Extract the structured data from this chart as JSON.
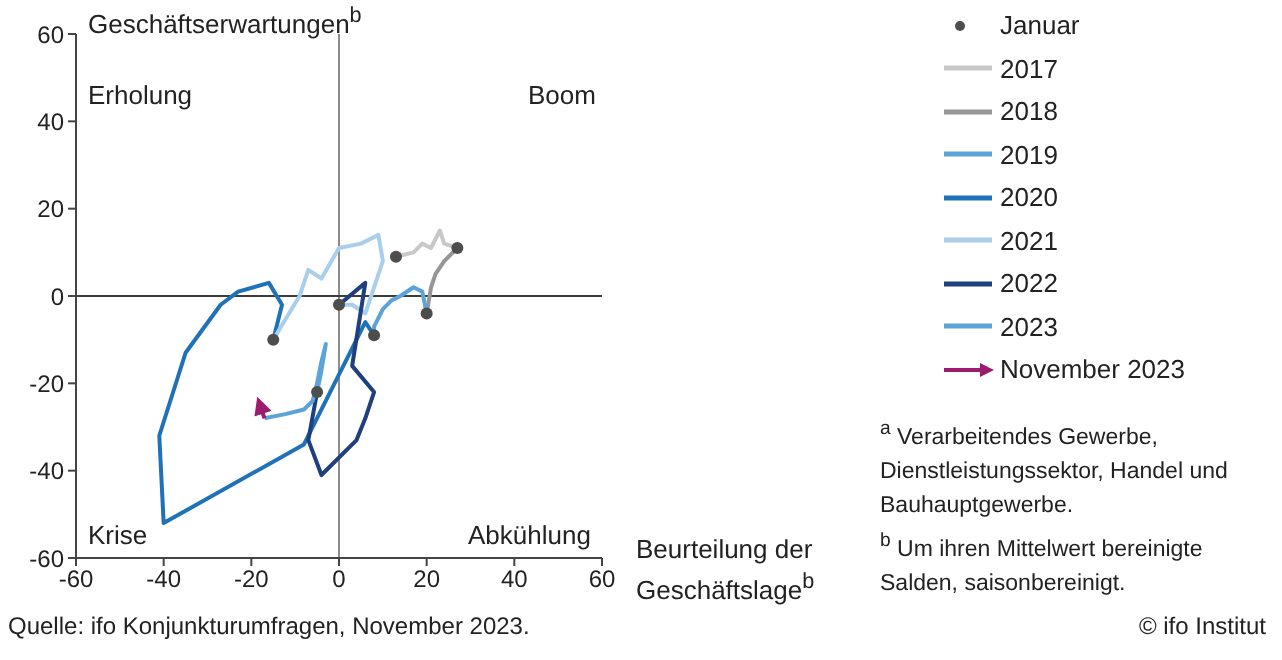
{
  "chart_data": {
    "type": "line",
    "xlabel": "Beurteilung der Geschäftslage$^{b}$",
    "ylabel": "Geschäftserwartungen$^{b}$",
    "xlim": [
      -60,
      60
    ],
    "xticks": [
      -60,
      -40,
      -20,
      0,
      20,
      40,
      60
    ],
    "ylim": [
      -60,
      60
    ],
    "yticks": [
      -60,
      -40,
      -20,
      0,
      20,
      40,
      60
    ],
    "grid": false,
    "legend": "right",
    "marker": "none",
    "ref_lines": [
      {
        "axis": "x",
        "value": 0,
        "color": "#8c8c8c"
      },
      {
        "axis": "y",
        "value": 0,
        "color": "#3c3c3c"
      }
    ],
    "series": [
      {
        "name": "Januar",
        "type": "scatter",
        "marker": "circle",
        "color": "#4d4d4d",
        "x": [
          13,
          27,
          20,
          8,
          -15,
          0,
          -5
        ],
        "values": [
          9,
          11,
          -4,
          -9,
          -10,
          -2,
          -22
        ]
      },
      {
        "name": "2017",
        "color": "#c8c8c8",
        "x": [
          13,
          17,
          19,
          21,
          23,
          24,
          27
        ],
        "values": [
          9,
          10,
          12,
          11,
          15,
          12,
          11
        ]
      },
      {
        "name": "2018",
        "color": "#969696",
        "x": [
          27,
          24,
          22,
          21,
          20
        ],
        "values": [
          11,
          8,
          5,
          2,
          -4
        ]
      },
      {
        "name": "2019",
        "color": "#5ba3d9",
        "x": [
          20,
          19,
          17,
          14,
          12,
          10,
          8,
          8
        ],
        "values": [
          -4,
          1,
          2,
          0,
          -1,
          -3,
          -7,
          -9
        ]
      },
      {
        "name": "2020",
        "color": "#1f72b8",
        "x": [
          8,
          6,
          -8,
          -40,
          -41,
          -35,
          -27,
          -23,
          -16,
          -13,
          -15
        ],
        "values": [
          -9,
          -6,
          -34,
          -52,
          -32,
          -13,
          -2,
          1,
          3,
          -2,
          -10
        ]
      },
      {
        "name": "2021",
        "color": "#a9cfec",
        "x": [
          -15,
          -12,
          -9,
          -7,
          -4,
          0,
          5,
          9,
          10,
          8,
          6,
          3,
          0
        ],
        "values": [
          -10,
          -5,
          0,
          6,
          4,
          11,
          12,
          14,
          8,
          2,
          -4,
          -2,
          -2
        ]
      },
      {
        "name": "2022",
        "color": "#1f3f7e",
        "x": [
          0,
          6,
          3,
          8,
          6,
          4,
          -4,
          -7,
          -5
        ],
        "values": [
          -2,
          3,
          -16,
          -22,
          -28,
          -33,
          -41,
          -33,
          -22
        ]
      },
      {
        "name": "2023",
        "color": "#5ba3d9",
        "x": [
          -5,
          -4,
          -3,
          -4,
          -5,
          -6,
          -8,
          -12,
          -17
        ],
        "values": [
          -22,
          -17,
          -11,
          -15,
          -20,
          -24,
          -26,
          -27,
          -28
        ]
      },
      {
        "name": "November 2023",
        "color": "#9b1b6e",
        "x": [
          -17,
          -18
        ],
        "values": [
          -28,
          -25
        ]
      }
    ],
    "annotations": [
      "Erholung",
      "Boom",
      "Krise",
      "Abkühlung",
      "$^{a}$ Verarbeitendes Gewerbe, Dienstleistungssektor, Handel und Bauhauptgewerbe.",
      "$^{b}$ Um ihren Mittelwert bereinigte Salden, saisonbereinigt.",
      "Quelle: ifo Konjunkturumfragen, November 2023.",
      "© ifo Institut"
    ]
  }
}
